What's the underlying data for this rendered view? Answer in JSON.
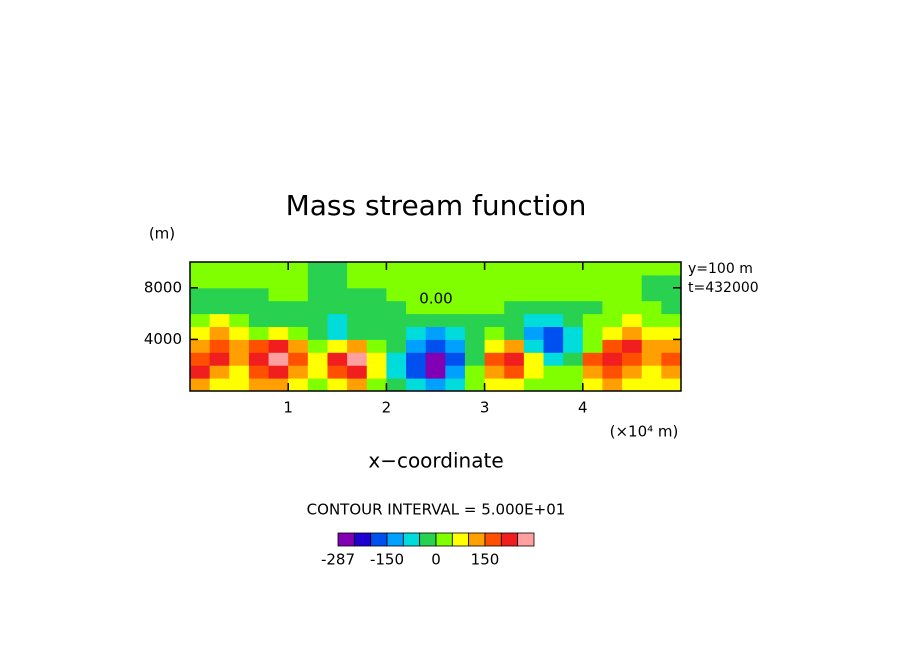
{
  "chart_data": {
    "type": "contour",
    "title": "Mass stream function",
    "xlabel": "x−coordinate",
    "xunit": "(×10⁴ m)",
    "ylabel": "(m)",
    "info": [
      "y=100 m",
      "t=432000"
    ],
    "contour_label": "0.00",
    "footer": "CONTOUR INTERVAL = 5.000E+01",
    "xlim": [
      0,
      50000
    ],
    "ylim": [
      0,
      10000
    ],
    "xticks": [
      {
        "value": 10000,
        "label": "1"
      },
      {
        "value": 20000,
        "label": "2"
      },
      {
        "value": 30000,
        "label": "3"
      },
      {
        "value": 40000,
        "label": "4"
      }
    ],
    "yticks": [
      4000,
      8000
    ],
    "x": [
      1000,
      3000,
      5000,
      7000,
      9000,
      11000,
      13000,
      15000,
      17000,
      19000,
      21000,
      23000,
      25000,
      27000,
      29000,
      31000,
      33000,
      35000,
      37000,
      39000,
      41000,
      43000,
      45000,
      47000,
      49000
    ],
    "y": [
      500,
      1500,
      2500,
      3500,
      4500,
      5500,
      6500,
      7500,
      8500,
      9500
    ],
    "z": [
      [
        110,
        60,
        60,
        110,
        110,
        60,
        20,
        60,
        110,
        20,
        -20,
        -60,
        -110,
        -60,
        20,
        60,
        60,
        20,
        20,
        20,
        60,
        110,
        60,
        60,
        60
      ],
      [
        210,
        110,
        60,
        160,
        210,
        110,
        60,
        160,
        210,
        60,
        -60,
        -160,
        -270,
        -110,
        20,
        110,
        160,
        60,
        20,
        20,
        110,
        160,
        110,
        60,
        110
      ],
      [
        160,
        210,
        110,
        210,
        260,
        160,
        60,
        210,
        260,
        60,
        -60,
        -160,
        -260,
        -160,
        -20,
        160,
        210,
        60,
        -60,
        -20,
        160,
        210,
        160,
        110,
        160
      ],
      [
        110,
        160,
        110,
        160,
        210,
        110,
        20,
        60,
        110,
        20,
        -20,
        -110,
        -160,
        -110,
        -20,
        60,
        110,
        -60,
        -160,
        -60,
        20,
        160,
        210,
        110,
        110
      ],
      [
        60,
        110,
        60,
        20,
        60,
        20,
        -20,
        -60,
        -20,
        -20,
        -20,
        -60,
        -110,
        -60,
        -20,
        20,
        -20,
        -110,
        -160,
        -60,
        20,
        60,
        110,
        60,
        60
      ],
      [
        20,
        60,
        20,
        -20,
        -20,
        -20,
        -20,
        -60,
        -20,
        -20,
        -20,
        -20,
        -20,
        -20,
        -20,
        -20,
        -20,
        -60,
        -60,
        -20,
        20,
        20,
        60,
        20,
        20
      ],
      [
        -20,
        -20,
        -20,
        -20,
        -20,
        -20,
        -20,
        -20,
        -20,
        -20,
        -20,
        20,
        20,
        20,
        20,
        20,
        -20,
        -20,
        -20,
        -20,
        -20,
        20,
        20,
        20,
        -20
      ],
      [
        -20,
        -20,
        -20,
        -20,
        20,
        20,
        -20,
        -20,
        -20,
        -20,
        20,
        20,
        20,
        20,
        20,
        20,
        20,
        20,
        20,
        20,
        20,
        20,
        20,
        -20,
        -20
      ],
      [
        20,
        20,
        20,
        20,
        20,
        20,
        -20,
        -20,
        20,
        20,
        20,
        20,
        20,
        20,
        20,
        20,
        20,
        20,
        20,
        20,
        20,
        20,
        20,
        -20,
        -20
      ],
      [
        20,
        20,
        20,
        20,
        20,
        20,
        -20,
        -20,
        20,
        20,
        20,
        20,
        20,
        20,
        20,
        20,
        20,
        20,
        20,
        20,
        20,
        20,
        20,
        20,
        20
      ]
    ],
    "levels": [
      -287,
      -250,
      -200,
      -150,
      -100,
      -50,
      0,
      50,
      100,
      150,
      200,
      250
    ],
    "colors": [
      "#8200b4",
      "#1e00d2",
      "#0050f0",
      "#00a0ff",
      "#00dcdc",
      "#28d250",
      "#80ff00",
      "#ffff00",
      "#ffa000",
      "#ff5000",
      "#f01e1e",
      "#ffa0a0"
    ],
    "colorbar_ticks": [
      0,
      3,
      6,
      9
    ]
  }
}
